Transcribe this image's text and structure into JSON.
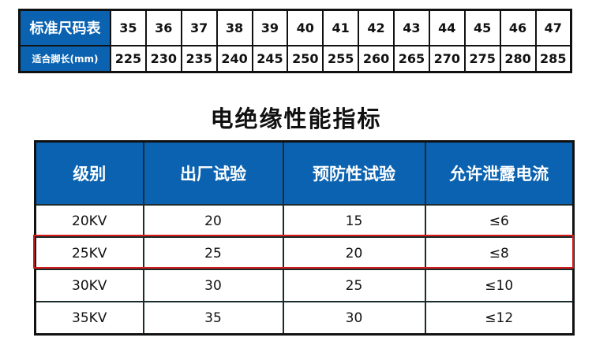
{
  "size_table": {
    "header_label": "标准尺码表",
    "foot_label": "适合脚长(mm)",
    "sizes": [
      "35",
      "36",
      "37",
      "38",
      "39",
      "40",
      "41",
      "42",
      "43",
      "44",
      "45",
      "46",
      "47"
    ],
    "foot_lengths": [
      "225",
      "230",
      "235",
      "240",
      "245",
      "250",
      "255",
      "260",
      "265",
      "270",
      "275",
      "280",
      "285"
    ]
  },
  "title": "电绝缘性能指标",
  "insulation_table": {
    "columns": [
      "级别",
      "出厂试验",
      "预防性试验",
      "允许泄露电流"
    ],
    "rows": [
      [
        "20KV",
        "20",
        "15",
        "≤6"
      ],
      [
        "25KV",
        "25",
        "20",
        "≤8"
      ],
      [
        "30KV",
        "30",
        "25",
        "≤10"
      ],
      [
        "35KV",
        "35",
        "30",
        "≤12"
      ]
    ],
    "highlighted_row": 1
  },
  "colors": {
    "header_blue": "#0a62b0",
    "highlight_red": "#d81c1c"
  }
}
